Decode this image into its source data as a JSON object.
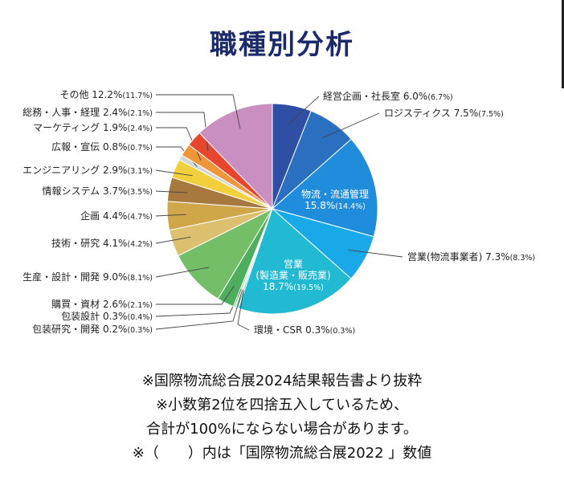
{
  "title": "職種別分析",
  "chart_data": {
    "type": "pie",
    "title": "職種別分析",
    "legend": "none",
    "slices": [
      {
        "label": "経営企画・社長室",
        "value": 6.0,
        "prev": 6.7,
        "color": "#2e4fa3",
        "pct_text": "6.0%",
        "prev_text": "(6.7%)"
      },
      {
        "label": "ロジスティクス",
        "value": 7.5,
        "prev": 7.5,
        "color": "#2a6fc0",
        "pct_text": "7.5%",
        "prev_text": "(7.5%)"
      },
      {
        "label": "物流・流通管理",
        "value": 15.8,
        "prev": 14.4,
        "color": "#1f8ddb",
        "pct_text": "15.8%",
        "prev_text": "(14.4%)"
      },
      {
        "label": "営業(物流事業者)",
        "value": 7.3,
        "prev": 8.3,
        "color": "#19a8e8",
        "pct_text": "7.3%",
        "prev_text": "(8.3%)"
      },
      {
        "label": "営業",
        "sublabel": "(製造業・販売業)",
        "value": 18.7,
        "prev": 19.5,
        "color": "#22b9d2",
        "pct_text": "18.7%",
        "prev_text": "(19.5%)"
      },
      {
        "label": "環境・CSR",
        "value": 0.3,
        "prev": 0.3,
        "color": "#7fcfbf",
        "pct_text": "0.3%",
        "prev_text": "(0.3%)"
      },
      {
        "label": "包装研究・開発",
        "value": 0.2,
        "prev": 0.3,
        "color": "#9fd6a6",
        "pct_text": "0.2%",
        "prev_text": "(0.3%)"
      },
      {
        "label": "包装設計",
        "value": 0.3,
        "prev": 0.4,
        "color": "#8ccc92",
        "pct_text": "0.3%",
        "prev_text": "(0.4%)"
      },
      {
        "label": "購買・資材",
        "value": 2.6,
        "prev": 2.1,
        "color": "#4fae5e",
        "pct_text": "2.6%",
        "prev_text": "(2.1%)"
      },
      {
        "label": "生産・設計・開発",
        "value": 9.0,
        "prev": 8.1,
        "color": "#73be67",
        "pct_text": "9.0%",
        "prev_text": "(8.1%)"
      },
      {
        "label": "技術・研究",
        "value": 4.1,
        "prev": 4.2,
        "color": "#dcc06e",
        "pct_text": "4.1%",
        "prev_text": "(4.2%)"
      },
      {
        "label": "企画",
        "value": 4.4,
        "prev": 4.7,
        "color": "#cfa64a",
        "pct_text": "4.4%",
        "prev_text": "(4.7%)"
      },
      {
        "label": "情報システム",
        "value": 3.7,
        "prev": 3.5,
        "color": "#a8793e",
        "pct_text": "3.7%",
        "prev_text": "(3.5%)"
      },
      {
        "label": "エンジニアリング",
        "value": 2.9,
        "prev": 3.1,
        "color": "#f2cf3c",
        "pct_text": "2.9%",
        "prev_text": "(3.1%)"
      },
      {
        "label": "広報・宣伝",
        "value": 0.8,
        "prev": 0.7,
        "color": "#d6d6d6",
        "pct_text": "0.8%",
        "prev_text": "(0.7%)"
      },
      {
        "label": "マーケティング",
        "value": 1.9,
        "prev": 2.4,
        "color": "#f1953a",
        "pct_text": "1.9%",
        "prev_text": "(2.4%)"
      },
      {
        "label": "総務・人事・経理",
        "value": 2.4,
        "prev": 2.1,
        "color": "#e8452e",
        "pct_text": "2.4%",
        "prev_text": "(2.1%)"
      },
      {
        "label": "その他",
        "value": 12.2,
        "prev": 11.7,
        "color": "#c98fc0",
        "pct_text": "12.2%",
        "prev_text": "(11.7%)"
      }
    ]
  },
  "notes": [
    "※国際物流総合展2024結果報告書より抜粋",
    "※小数第2位を四捨五入しているため、",
    "合計が100%にならない場合があります。",
    "※（　　）内は「国際物流総合展2022 」数値"
  ]
}
